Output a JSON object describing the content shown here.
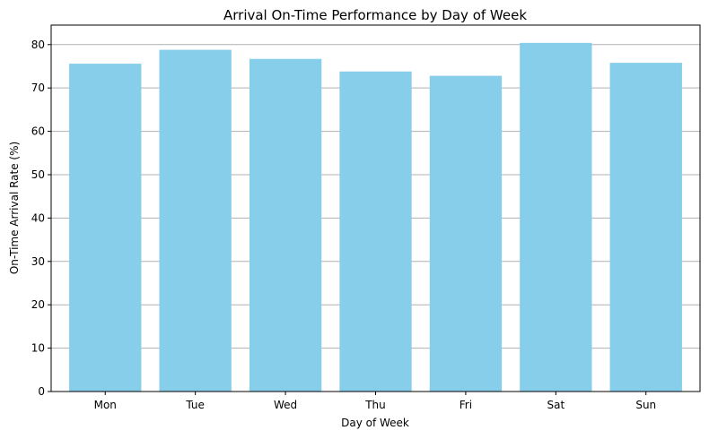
{
  "chart_data": {
    "type": "bar",
    "title": "Arrival On-Time Performance by Day of Week",
    "xlabel": "Day of Week",
    "ylabel": "On-Time Arrival Rate (%)",
    "categories": [
      "Mon",
      "Tue",
      "Wed",
      "Thu",
      "Fri",
      "Sat",
      "Sun"
    ],
    "values": [
      75.6,
      78.8,
      76.7,
      73.8,
      72.8,
      80.4,
      75.8
    ],
    "ylim": [
      0,
      84.5
    ],
    "yticks": [
      0,
      10,
      20,
      30,
      40,
      50,
      60,
      70,
      80
    ],
    "grid": "y",
    "bar_color": "#87CEEB",
    "grid_color": "#b0b0b0"
  }
}
